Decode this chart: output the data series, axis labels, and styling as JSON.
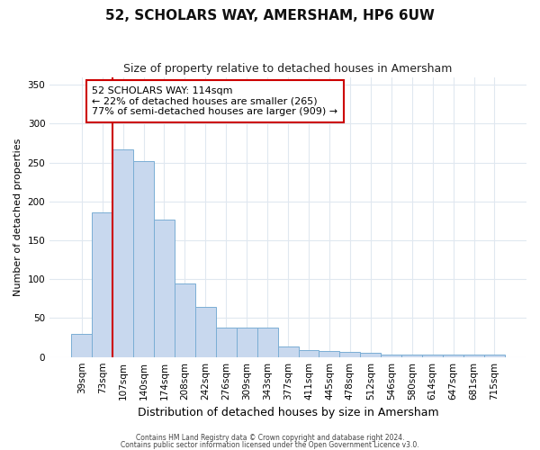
{
  "title": "52, SCHOLARS WAY, AMERSHAM, HP6 6UW",
  "subtitle": "Size of property relative to detached houses in Amersham",
  "xlabel": "Distribution of detached houses by size in Amersham",
  "ylabel": "Number of detached properties",
  "categories": [
    "39sqm",
    "73sqm",
    "107sqm",
    "140sqm",
    "174sqm",
    "208sqm",
    "242sqm",
    "276sqm",
    "309sqm",
    "343sqm",
    "377sqm",
    "411sqm",
    "445sqm",
    "478sqm",
    "512sqm",
    "546sqm",
    "580sqm",
    "614sqm",
    "647sqm",
    "681sqm",
    "715sqm"
  ],
  "values": [
    30,
    186,
    267,
    252,
    177,
    95,
    65,
    38,
    38,
    38,
    13,
    9,
    8,
    6,
    5,
    3,
    3,
    3,
    3,
    3,
    3
  ],
  "bar_color": "#c8d8ee",
  "bar_edge_color": "#7aaed4",
  "red_line_index": 2,
  "red_line_color": "#cc0000",
  "annotation_text": "52 SCHOLARS WAY: 114sqm\n← 22% of detached houses are smaller (265)\n77% of semi-detached houses are larger (909) →",
  "annotation_box_facecolor": "#ffffff",
  "annotation_box_edgecolor": "#cc0000",
  "ylim": [
    0,
    360
  ],
  "yticks": [
    0,
    50,
    100,
    150,
    200,
    250,
    300,
    350
  ],
  "fig_facecolor": "#ffffff",
  "ax_facecolor": "#ffffff",
  "grid_color": "#e0e8f0",
  "title_fontsize": 11,
  "subtitle_fontsize": 9,
  "ylabel_fontsize": 8,
  "xlabel_fontsize": 9,
  "tick_fontsize": 7.5,
  "footer_line1": "Contains HM Land Registry data © Crown copyright and database right 2024.",
  "footer_line2": "Contains public sector information licensed under the Open Government Licence v3.0."
}
